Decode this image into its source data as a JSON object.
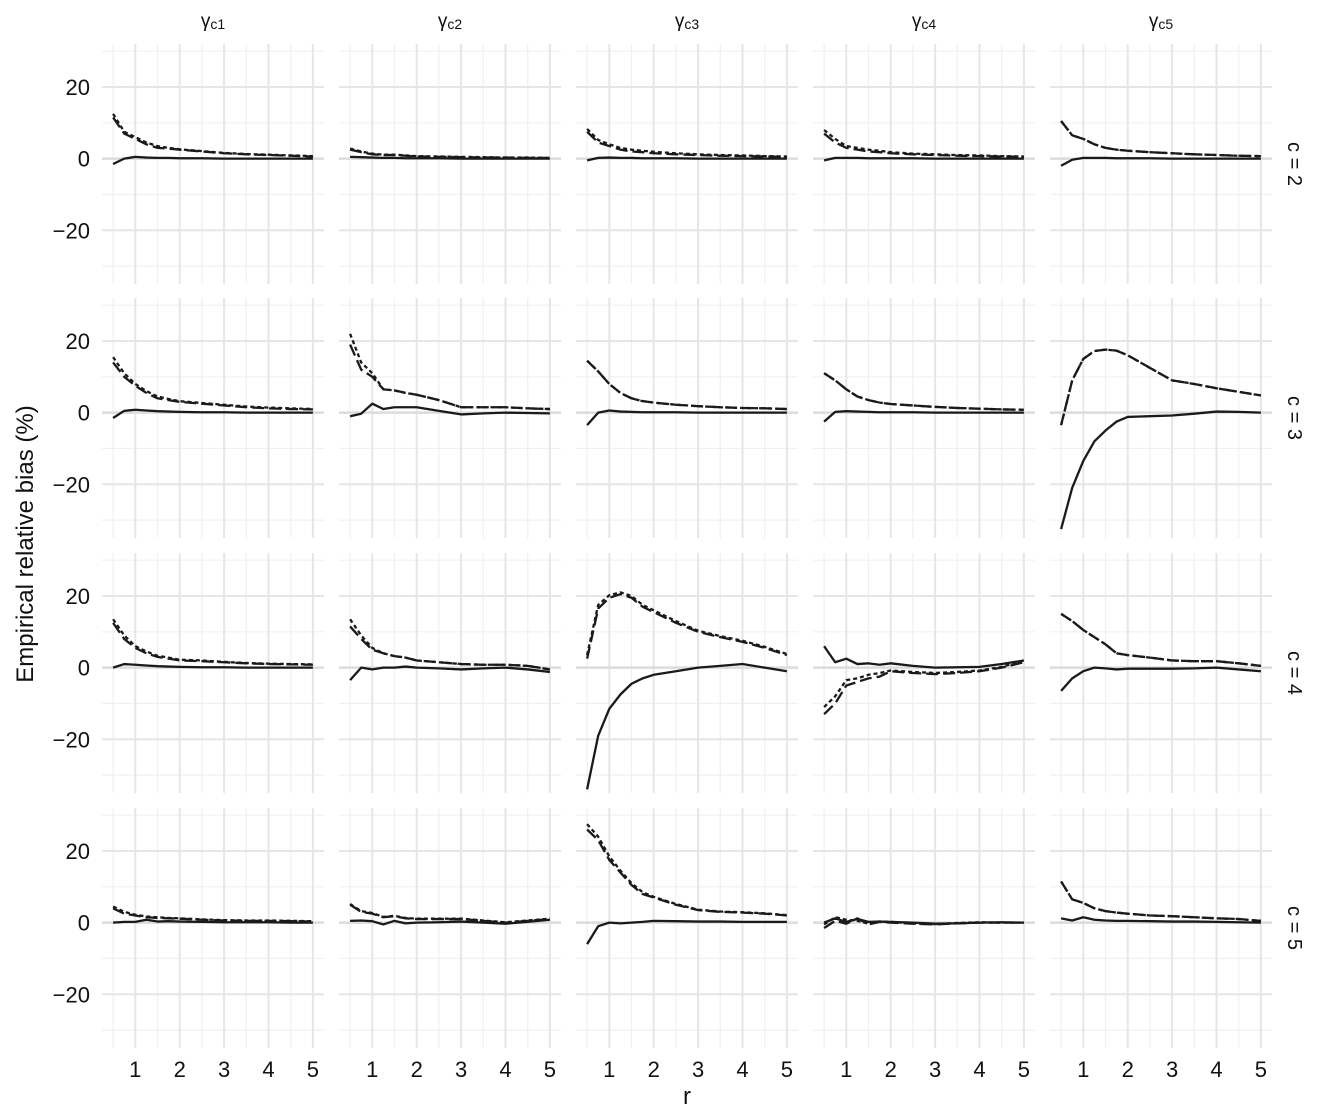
{
  "chart_data": {
    "type": "line",
    "xlabel": "r",
    "ylabel": "Empirical relative bias (%)",
    "xticks": [
      1,
      2,
      3,
      4,
      5
    ],
    "yticks": [
      -20,
      0,
      20
    ],
    "xlim": [
      0.25,
      5.25
    ],
    "ylim": [
      -35,
      32
    ],
    "grid": true,
    "col_strips": [
      {
        "base": "γ",
        "sub": "c1"
      },
      {
        "base": "γ",
        "sub": "c2"
      },
      {
        "base": "γ",
        "sub": "c3"
      },
      {
        "base": "γ",
        "sub": "c4"
      },
      {
        "base": "γ",
        "sub": "c5"
      }
    ],
    "row_strips": [
      "c = 2",
      "c = 3",
      "c = 4",
      "c = 5"
    ],
    "x": [
      0.5,
      0.75,
      1,
      1.25,
      1.5,
      1.75,
      2,
      2.5,
      3,
      3.5,
      4,
      4.5,
      5
    ],
    "panels": [
      [
        {
          "solid": [
            -1.5,
            0,
            0.5,
            0.3,
            0.2,
            0.2,
            0.1,
            0.1,
            0,
            0,
            0,
            0,
            0
          ],
          "dashed": [
            11.5,
            7,
            5.5,
            4,
            3,
            2.8,
            2.5,
            2,
            1.5,
            1.2,
            1,
            0.8,
            0.6
          ],
          "dotted": [
            12.5,
            7.5,
            6,
            4.5,
            3.5,
            3,
            2.6,
            2.1,
            1.6,
            1.3,
            1.1,
            0.9,
            0.7
          ]
        },
        {
          "solid": [
            0.5,
            0.4,
            0.3,
            0.2,
            0.2,
            0.1,
            0.1,
            0.1,
            0,
            0,
            0,
            0,
            0
          ],
          "dashed": [
            2.5,
            1.8,
            1.2,
            1,
            1,
            0.8,
            0.6,
            0.5,
            0.4,
            0.3,
            0.3,
            0.2,
            0.2
          ],
          "dotted": [
            2.8,
            2,
            1.4,
            1.1,
            1.1,
            0.9,
            0.7,
            0.6,
            0.5,
            0.4,
            0.3,
            0.3,
            0.2
          ]
        },
        {
          "solid": [
            -0.5,
            0.2,
            0.3,
            0.2,
            0.2,
            0.1,
            0.1,
            0.1,
            0,
            0,
            0,
            0,
            0
          ],
          "dashed": [
            7.5,
            4.5,
            3.5,
            2.5,
            2,
            1.8,
            1.5,
            1.2,
            1,
            0.8,
            0.7,
            0.6,
            0.5
          ],
          "dotted": [
            8.3,
            5.2,
            4,
            3,
            2.5,
            2.2,
            1.9,
            1.5,
            1.2,
            1,
            0.9,
            0.7,
            0.6
          ]
        },
        {
          "solid": [
            -0.5,
            0.2,
            0.2,
            0.2,
            0.1,
            0.1,
            0.1,
            0.1,
            0,
            0,
            0,
            0,
            0
          ],
          "dashed": [
            7,
            4.5,
            3,
            2.5,
            2,
            1.8,
            1.5,
            1.2,
            1,
            0.8,
            0.7,
            0.6,
            0.5
          ],
          "dotted": [
            8,
            5.5,
            3.5,
            3,
            2.5,
            2.2,
            1.8,
            1.4,
            1.2,
            1,
            0.9,
            0.7,
            0.6
          ]
        },
        {
          "solid": [
            -2,
            -0.3,
            0.2,
            0.2,
            0.2,
            0.1,
            0.1,
            0.1,
            0,
            0,
            0,
            0,
            0
          ],
          "dashed": [
            10.5,
            6.5,
            5.5,
            4,
            3,
            2.5,
            2.2,
            1.8,
            1.5,
            1.2,
            1,
            0.8,
            0.7
          ],
          "dotted": [
            10.5,
            6.5,
            5.5,
            4,
            3,
            2.5,
            2.2,
            1.8,
            1.5,
            1.2,
            1,
            0.8,
            0.7
          ]
        }
      ],
      [
        {
          "solid": [
            -1.5,
            0.5,
            0.8,
            0.6,
            0.4,
            0.3,
            0.2,
            0.1,
            0.1,
            0,
            0,
            0,
            0
          ],
          "dashed": [
            14,
            10,
            7.5,
            5.5,
            4,
            3.5,
            3,
            2.5,
            2,
            1.5,
            1.2,
            1,
            0.9
          ],
          "dotted": [
            15.5,
            11,
            8,
            6,
            4.5,
            3.8,
            3.2,
            2.7,
            2.2,
            1.7,
            1.4,
            1.2,
            1
          ]
        },
        {
          "solid": [
            -1,
            -0.3,
            2.5,
            1,
            1.5,
            1.5,
            1.5,
            0.5,
            -0.5,
            -0.2,
            0,
            -0.1,
            -0.2
          ],
          "dashed": [
            19,
            12,
            10,
            6.5,
            6.2,
            5.5,
            5,
            3.5,
            1.5,
            1.5,
            1.5,
            1.2,
            1
          ],
          "dotted": [
            22,
            14,
            11,
            6.5,
            6.2,
            5.5,
            5,
            3.5,
            1.5,
            1.5,
            1.5,
            1.2,
            1
          ]
        },
        {
          "solid": [
            -3.5,
            0,
            0.6,
            0.3,
            0.2,
            0.1,
            0.1,
            0.1,
            0,
            0,
            0,
            0,
            0
          ],
          "dashed": [
            14.5,
            11.5,
            8,
            5.5,
            4,
            3.2,
            2.8,
            2.2,
            1.8,
            1.5,
            1.3,
            1.2,
            1
          ],
          "dotted": [
            14.5,
            11.5,
            8,
            5.5,
            4,
            3.2,
            2.8,
            2.2,
            1.8,
            1.5,
            1.3,
            1.2,
            1
          ]
        },
        {
          "solid": [
            -2.5,
            0.2,
            0.4,
            0.3,
            0.2,
            0.1,
            0.1,
            0.1,
            0,
            0,
            0,
            0,
            0
          ],
          "dashed": [
            11,
            9,
            6.5,
            4.5,
            3.5,
            2.8,
            2.4,
            2,
            1.6,
            1.3,
            1.1,
            0.9,
            0.8
          ],
          "dotted": [
            11,
            9,
            6.5,
            4.5,
            3.5,
            2.8,
            2.4,
            2,
            1.6,
            1.3,
            1.1,
            0.9,
            0.8
          ]
        },
        {
          "solid": [
            -32.5,
            -21,
            -13.5,
            -8,
            -5,
            -2.5,
            -1.2,
            -1,
            -0.8,
            -0.3,
            0.3,
            0.2,
            0
          ],
          "dashed": [
            -3.5,
            9,
            15,
            17.2,
            17.6,
            17.3,
            16,
            12.5,
            9,
            8,
            6.8,
            5.8,
            4.8
          ],
          "dotted": [
            -3.5,
            9,
            15,
            17.2,
            17.6,
            17.3,
            16,
            12.5,
            9,
            8,
            6.8,
            5.8,
            4.8
          ]
        }
      ],
      [
        {
          "solid": [
            0,
            1,
            0.8,
            0.6,
            0.4,
            0.3,
            0.2,
            0.1,
            0.1,
            0,
            0,
            0,
            0
          ],
          "dashed": [
            12.5,
            8,
            5.5,
            4,
            3,
            2.5,
            2,
            1.8,
            1.5,
            1.2,
            1,
            0.9,
            0.8
          ],
          "dotted": [
            13.5,
            9,
            6,
            4.5,
            3.3,
            2.8,
            2.2,
            2,
            1.6,
            1.3,
            1.1,
            1,
            0.9
          ]
        },
        {
          "solid": [
            -3.5,
            0,
            -0.5,
            0,
            0,
            0.3,
            0,
            -0.2,
            -0.5,
            -0.2,
            0,
            -0.5,
            -1.2
          ],
          "dashed": [
            11.5,
            8,
            5,
            4,
            3.2,
            2.8,
            2,
            1.5,
            1,
            0.8,
            0.8,
            0.5,
            -0.5
          ],
          "dotted": [
            13.5,
            9,
            5.5,
            4,
            3.2,
            2.8,
            2,
            1.5,
            1,
            0.8,
            0.8,
            0.5,
            -0.5
          ]
        },
        {
          "solid": [
            -34,
            -19,
            -11.5,
            -7.5,
            -4.5,
            -3,
            -2,
            -1,
            0,
            0.5,
            1,
            0,
            -1
          ],
          "dashed": [
            2.5,
            16.5,
            19.5,
            20.5,
            19.5,
            17,
            15.5,
            12.5,
            10,
            8.5,
            7.2,
            5.5,
            3.5
          ],
          "dotted": [
            3.5,
            17.5,
            20.2,
            21,
            20,
            17.5,
            16,
            13,
            10.3,
            8.8,
            7.5,
            5.8,
            3.8
          ]
        },
        {
          "solid": [
            6,
            1.5,
            2.5,
            1,
            1.2,
            0.8,
            1.2,
            0.5,
            0,
            0.1,
            0.2,
            1,
            2
          ],
          "dashed": [
            -13,
            -10,
            -5,
            -4,
            -3,
            -2.5,
            -1,
            -1.5,
            -1.8,
            -1.5,
            -1,
            0,
            1.5
          ],
          "dotted": [
            -11,
            -8,
            -3.5,
            -3,
            -2,
            -1.5,
            -0.8,
            -1.2,
            -1.5,
            -1.2,
            -0.8,
            0.2,
            2
          ]
        },
        {
          "solid": [
            -6.5,
            -3,
            -1,
            0,
            -0.2,
            -0.5,
            -0.3,
            -0.3,
            -0.3,
            -0.2,
            0,
            -0.5,
            -1
          ],
          "dashed": [
            15,
            13,
            10.5,
            8.5,
            6.5,
            4,
            3.5,
            2.8,
            2,
            1.8,
            1.8,
            1.2,
            0.5
          ],
          "dotted": [
            15,
            13,
            10.5,
            8.5,
            6.5,
            4,
            3.5,
            2.8,
            2,
            1.8,
            1.8,
            1.2,
            0.5
          ]
        }
      ],
      [
        {
          "solid": [
            0,
            0.2,
            0.2,
            0.8,
            0.3,
            0.4,
            0.3,
            0.2,
            0.1,
            0.1,
            0.1,
            0,
            0
          ],
          "dashed": [
            4,
            2.5,
            2,
            1.5,
            1.3,
            1.2,
            1.1,
            0.8,
            0.6,
            0.5,
            0.5,
            0.4,
            0.3
          ],
          "dotted": [
            4.5,
            3,
            2.2,
            1.7,
            1.5,
            1.3,
            1.2,
            0.9,
            0.7,
            0.6,
            0.6,
            0.5,
            0.4
          ]
        },
        {
          "solid": [
            0.5,
            0.6,
            0.4,
            -0.5,
            0.5,
            -0.2,
            0,
            0.1,
            0.3,
            0,
            -0.3,
            0.2,
            0.8
          ],
          "dashed": [
            5,
            3,
            2.5,
            1.5,
            1.8,
            1.2,
            1,
            1,
            1,
            0.5,
            0,
            0.5,
            1
          ],
          "dotted": [
            5.2,
            3.2,
            2.7,
            1.6,
            1.9,
            1.3,
            1.1,
            1.1,
            1.1,
            0.6,
            0.1,
            0.6,
            1.1
          ]
        },
        {
          "solid": [
            -6,
            -1,
            0,
            -0.2,
            0,
            0.2,
            0.5,
            0.4,
            0.3,
            0.3,
            0.2,
            0.2,
            0.2
          ],
          "dashed": [
            26,
            23,
            17.5,
            14,
            10.5,
            8,
            7,
            5,
            3.5,
            3,
            2.8,
            2.5,
            2
          ],
          "dotted": [
            27.5,
            24,
            18.5,
            14.5,
            11,
            8.5,
            7.2,
            5.2,
            3.6,
            3.1,
            2.9,
            2.6,
            2.1
          ]
        },
        {
          "solid": [
            0,
            1.2,
            0.2,
            1,
            0.2,
            0.3,
            0.2,
            0,
            -0.3,
            -0.2,
            0,
            0.1,
            0
          ],
          "dashed": [
            -1.5,
            0.5,
            -0.3,
            1.2,
            -0.5,
            0.2,
            0,
            -0.3,
            -0.5,
            -0.2,
            0,
            0,
            0
          ],
          "dotted": [
            -0.5,
            1.5,
            0.8,
            0.5,
            -0.3,
            0.3,
            0.2,
            -0.2,
            -0.4,
            -0.1,
            0.1,
            0,
            0
          ]
        },
        {
          "solid": [
            1.2,
            0.6,
            1.5,
            0.8,
            0.6,
            0.5,
            0.5,
            0.4,
            0.3,
            0.3,
            0.2,
            0.1,
            0
          ],
          "dashed": [
            11.5,
            6.5,
            5.5,
            4,
            3.2,
            2.8,
            2.5,
            2,
            1.8,
            1.5,
            1.2,
            1,
            0.5
          ],
          "dotted": [
            11.5,
            6.5,
            5.5,
            4,
            3.2,
            2.8,
            2.5,
            2,
            1.8,
            1.5,
            1.2,
            1,
            0.5
          ]
        }
      ]
    ]
  }
}
